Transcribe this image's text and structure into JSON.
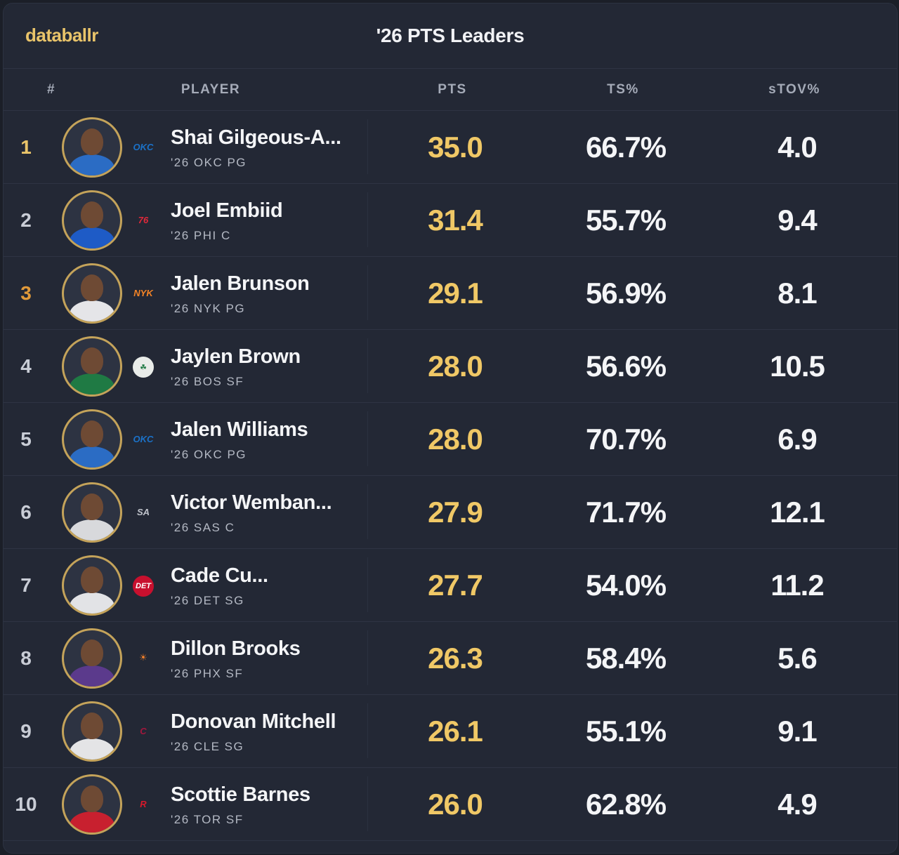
{
  "brand": "databallr",
  "title": "'26 PTS Leaders",
  "columns": {
    "rank": "#",
    "player": "PLAYER",
    "pts": "PTS",
    "ts": "TS%",
    "stov": "sTOV%"
  },
  "rows": [
    {
      "rank": "1",
      "name": "Shai Gilgeous-A...",
      "sub": "'26 OKC PG",
      "pts": "35.0",
      "ts": "66.7%",
      "stov": "4.0",
      "team_logo": "thunder-logo-icon",
      "jersey_color": "#2b6cc4",
      "rank_color": "gold"
    },
    {
      "rank": "2",
      "name": "Joel Embiid",
      "sub": "'26 PHI C",
      "pts": "31.4",
      "ts": "55.7%",
      "stov": "9.4",
      "team_logo": "sixers-logo-icon",
      "jersey_color": "#1e5bc6",
      "rank_color": "default"
    },
    {
      "rank": "3",
      "name": "Jalen Brunson",
      "sub": "'26 NYK PG",
      "pts": "29.1",
      "ts": "56.9%",
      "stov": "8.1",
      "team_logo": "knicks-logo-icon",
      "jersey_color": "#e5e5e8",
      "rank_color": "bronze"
    },
    {
      "rank": "4",
      "name": "Jaylen Brown",
      "sub": "'26 BOS SF",
      "pts": "28.0",
      "ts": "56.6%",
      "stov": "10.5",
      "team_logo": "celtics-logo-icon",
      "jersey_color": "#1f7a44",
      "rank_color": "default"
    },
    {
      "rank": "5",
      "name": "Jalen Williams",
      "sub": "'26 OKC PG",
      "pts": "28.0",
      "ts": "70.7%",
      "stov": "6.9",
      "team_logo": "thunder-logo-icon",
      "jersey_color": "#2b6cc4",
      "rank_color": "default"
    },
    {
      "rank": "6",
      "name": "Victor Wemban...",
      "sub": "'26 SAS C",
      "pts": "27.9",
      "ts": "71.7%",
      "stov": "12.1",
      "team_logo": "spurs-logo-icon",
      "jersey_color": "#d8d9dc",
      "rank_color": "default"
    },
    {
      "rank": "7",
      "name": "Cade Cu...",
      "sub": "'26 DET SG",
      "pts": "27.7",
      "ts": "54.0%",
      "stov": "11.2",
      "team_logo": "pistons-logo-icon",
      "jersey_color": "#e2e3e6",
      "rank_color": "default"
    },
    {
      "rank": "8",
      "name": "Dillon Brooks",
      "sub": "'26 PHX SF",
      "pts": "26.3",
      "ts": "58.4%",
      "stov": "5.6",
      "team_logo": "suns-logo-icon",
      "jersey_color": "#5b3a8c",
      "rank_color": "default"
    },
    {
      "rank": "9",
      "name": "Donovan Mitchell",
      "sub": "'26 CLE SG",
      "pts": "26.1",
      "ts": "55.1%",
      "stov": "9.1",
      "team_logo": "cavaliers-logo-icon",
      "jersey_color": "#e4e4e6",
      "rank_color": "default"
    },
    {
      "rank": "10",
      "name": "Scottie Barnes",
      "sub": "'26 TOR SF",
      "pts": "26.0",
      "ts": "62.8%",
      "stov": "4.9",
      "team_logo": "raptors-logo-icon",
      "jersey_color": "#c8202f",
      "rank_color": "default"
    }
  ]
}
